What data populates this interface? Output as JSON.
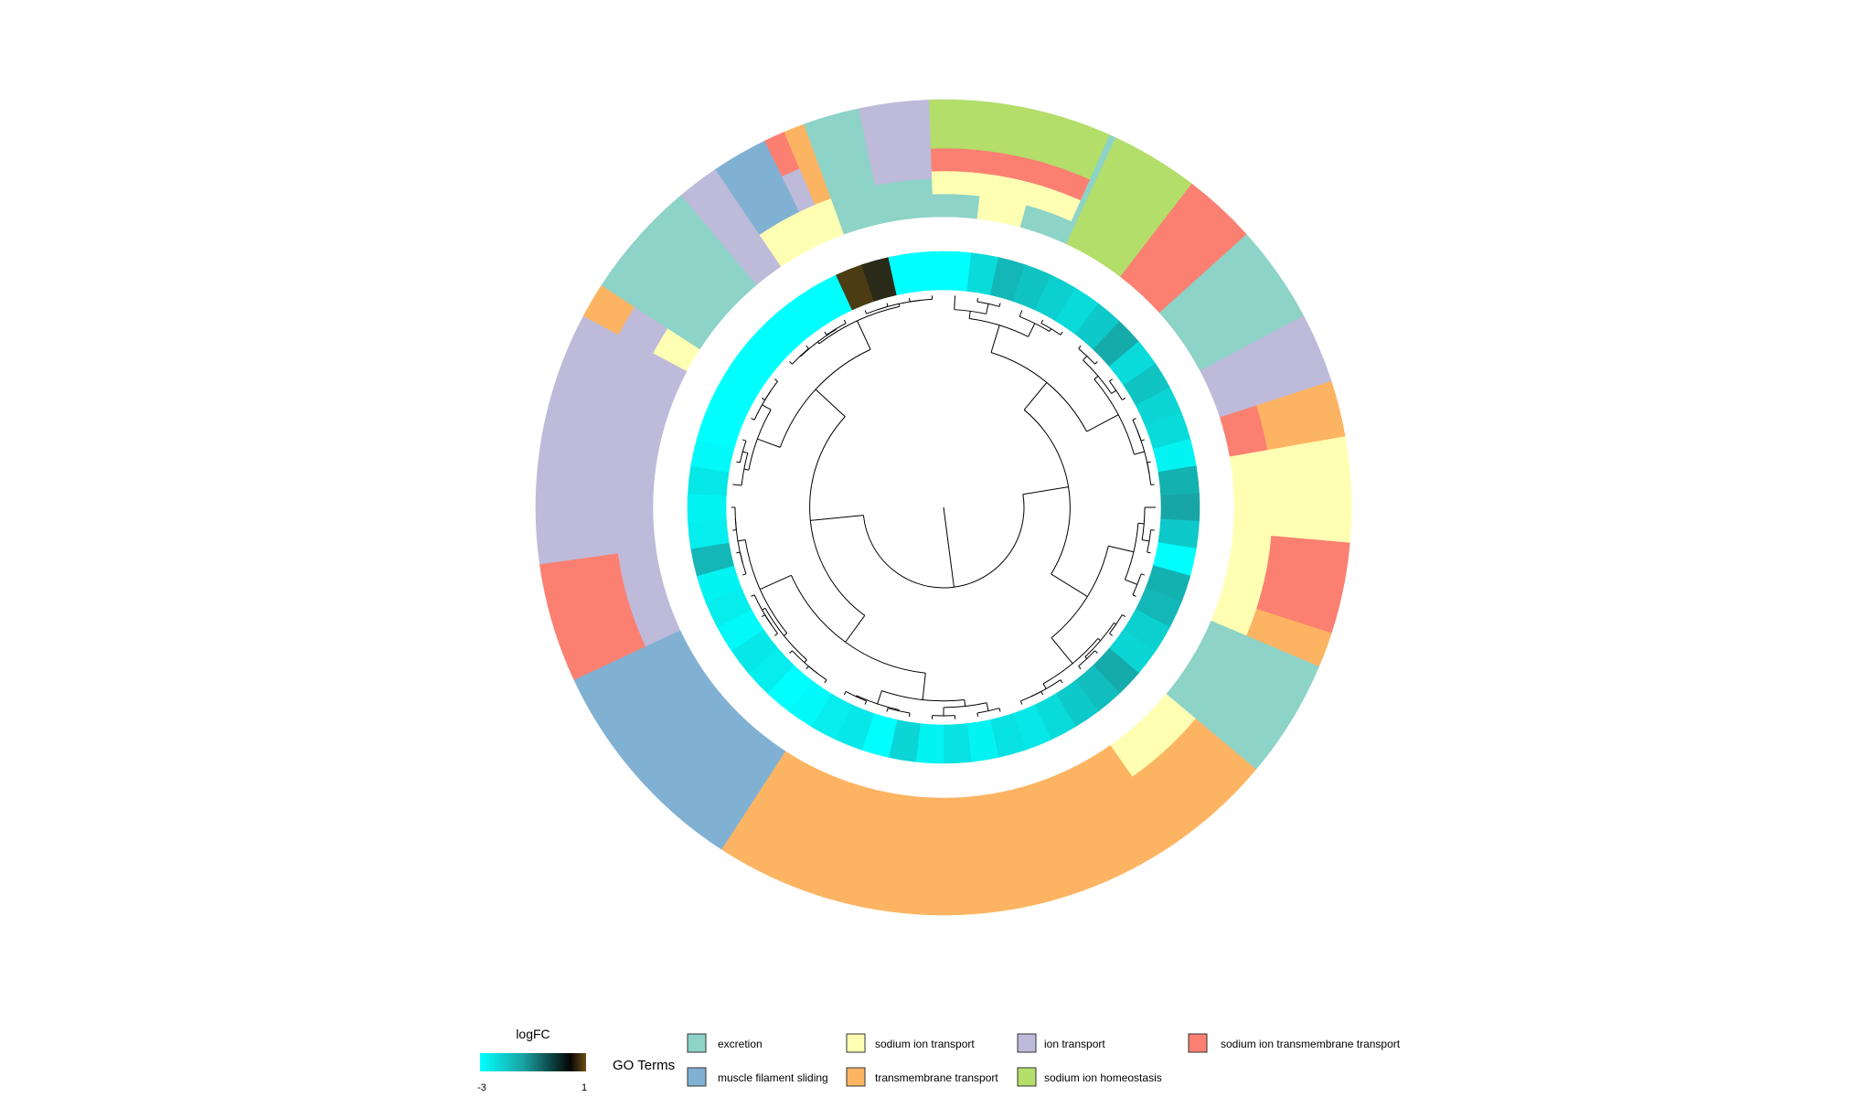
{
  "chart_data": {
    "type": "heatmap",
    "subtype": "circular-dendrogram-with-annotation-rings",
    "grid": false,
    "legend_placement": "bottom",
    "color_legend": {
      "title": "logFC",
      "min": -3,
      "max": 1,
      "min_label": "-3",
      "max_label": "1",
      "colors": [
        "#00ffff",
        "#1a9a9a",
        "#0a1a1a",
        "#5c4512"
      ]
    },
    "go_legend": {
      "title": "GO Terms",
      "terms": [
        {
          "name": "excretion",
          "color": "#8dd3c7"
        },
        {
          "name": "muscle filament sliding",
          "color": "#80b1d3"
        },
        {
          "name": "sodium ion transport",
          "color": "#ffffb3"
        },
        {
          "name": "transmembrane transport",
          "color": "#fdb462"
        },
        {
          "name": "ion transport",
          "color": "#bebada"
        },
        {
          "name": "sodium ion homeostasis",
          "color": "#b3de69"
        },
        {
          "name": "sodium ion transmembrane transport",
          "color": "#fb8072"
        }
      ]
    },
    "logfc_segments": [
      -3.0,
      -2.4,
      -1.8,
      -2.0,
      -2.2,
      -2.4,
      -2.1,
      -1.6,
      -2.4,
      -2.0,
      -2.3,
      -2.4,
      -2.8,
      -1.7,
      -1.5,
      -2.1,
      -3.0,
      -1.7,
      -1.8,
      -2.2,
      -2.3,
      -1.6,
      -1.9,
      -2.1,
      -2.4,
      -2.6,
      -2.5,
      -2.8,
      -2.5,
      -2.8,
      -2.3,
      -3.0,
      -2.6,
      -2.7,
      -2.9,
      -3.0,
      -2.7,
      -2.6,
      -2.9,
      -2.7,
      -2.8,
      -1.8,
      -2.7,
      -2.8,
      -2.6,
      -2.9,
      -3.0,
      -3.0,
      -3.0,
      -3.0,
      -3.0,
      -3.0,
      -3.0,
      -3.0,
      0.9,
      0.7,
      -3.0,
      -3.0
    ],
    "go_blocks": [
      {
        "from": 0.0,
        "to": 25.0,
        "layers": [
          "excretion",
          "excretion",
          "excretion"
        ]
      },
      {
        "from": 25.0,
        "to": 37.5,
        "layers": [
          "sodium ion homeostasis",
          "sodium ion homeostasis",
          "sodium ion homeostasis"
        ]
      },
      {
        "from": 37.5,
        "to": 48.0,
        "layers": [
          "sodium ion transmembrane transport",
          "sodium ion transmembrane transport",
          "sodium ion transmembrane transport"
        ]
      },
      {
        "from": 48.0,
        "to": 62.0,
        "layers": [
          "excretion",
          "excretion",
          "excretion"
        ]
      },
      {
        "from": 62.0,
        "to": 72.0,
        "layers": [
          "ion transport",
          "ion transport",
          "ion transport"
        ]
      },
      {
        "from": 72.0,
        "to": 80.0,
        "layers": [
          "sodium ion transmembrane transport",
          "transmembrane transport",
          "transmembrane transport"
        ]
      },
      {
        "from": 80.0,
        "to": 95.0,
        "layers": [
          "sodium ion transport",
          "sodium ion transport",
          "sodium ion transport"
        ]
      },
      {
        "from": 95.0,
        "to": 108.0,
        "layers": [
          "sodium ion transport",
          "sodium ion transmembrane transport",
          "sodium ion transmembrane transport"
        ]
      },
      {
        "from": 108.0,
        "to": 113.0,
        "layers": [
          "sodium ion transport",
          "transmembrane transport",
          "transmembrane transport"
        ]
      },
      {
        "from": 113.0,
        "to": 130.0,
        "layers": [
          "excretion",
          "excretion",
          "excretion"
        ]
      },
      {
        "from": 130.0,
        "to": 145.0,
        "layers": [
          "sodium ion transport",
          "transmembrane transport",
          "transmembrane transport"
        ]
      },
      {
        "from": 145.0,
        "to": 213.0,
        "layers": [
          "transmembrane transport",
          "transmembrane transport",
          "transmembrane transport"
        ]
      },
      {
        "from": 213.0,
        "to": 245.0,
        "layers": [
          "muscle filament sliding",
          "muscle filament sliding",
          "muscle filament sliding"
        ]
      },
      {
        "from": 245.0,
        "to": 262.0,
        "layers": [
          "ion transport",
          "sodium ion transmembrane transport",
          "sodium ion transmembrane transport"
        ]
      },
      {
        "from": 262.0,
        "to": 298.0,
        "layers": [
          "ion transport",
          "ion transport",
          "ion transport"
        ]
      },
      {
        "from": 298.0,
        "to": 303.0,
        "layers": [
          "sodium ion transport",
          "ion transport",
          "transmembrane transport"
        ]
      },
      {
        "from": 303.0,
        "to": 320.0,
        "layers": [
          "excretion",
          "excretion",
          "excretion"
        ]
      },
      {
        "from": 320.0,
        "to": 326.0,
        "layers": [
          "ion transport",
          "ion transport",
          "ion transport"
        ]
      },
      {
        "from": 326.0,
        "to": 334.0,
        "layers": [
          "sodium ion transport",
          "muscle filament sliding",
          "muscle filament sliding"
        ]
      },
      {
        "from": 334.0,
        "to": 337.0,
        "layers": [
          "sodium ion transport",
          "ion transport",
          "sodium ion transmembrane transport"
        ]
      },
      {
        "from": 337.0,
        "to": 340.0,
        "layers": [
          "sodium ion transport",
          "transmembrane transport",
          "transmembrane transport"
        ]
      },
      {
        "from": 340.0,
        "to": 348.0,
        "layers": [
          "excretion",
          "excretion",
          "excretion"
        ]
      },
      {
        "from": 348.0,
        "to": 360.0,
        "layers": [
          "excretion",
          "ion transport",
          "ion transport"
        ]
      }
    ],
    "center_block": {
      "from": 358.0,
      "to": 384.0,
      "rows": [
        [
          "excretion",
          "sodium ion transport",
          "sodium ion transmembrane transport",
          "sodium ion homeostasis"
        ],
        [
          "sodium ion transport",
          "sodium ion transport",
          "sodium ion transmembrane transport",
          "sodium ion homeostasis"
        ],
        [
          "excretion",
          "sodium ion transport",
          "sodium ion transmembrane transport",
          "sodium ion homeostasis"
        ]
      ]
    },
    "dendrogram_leaves": 58
  }
}
